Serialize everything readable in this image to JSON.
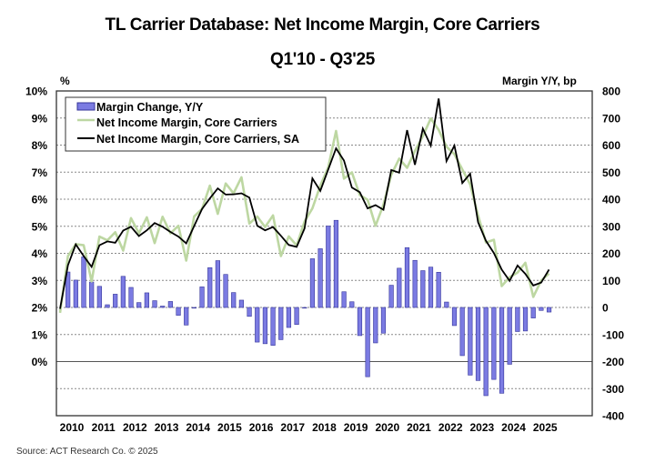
{
  "title": "TL Carrier Database: Net Income Margin, Core Carriers",
  "subtitle": "Q1'10 - Q3'25",
  "source": "Source: ACT Research Co. © 2025",
  "colors": {
    "bar_fill": "#7b7be2",
    "bar_stroke": "#35359a",
    "green": "#bdd7a2",
    "black": "#000000",
    "grid": "#888888"
  },
  "chart_data": {
    "type": "bar+line",
    "title": "TL Carrier Database: Net Income Margin, Core Carriers",
    "subtitle": "Q1'10 - Q3'25",
    "xlabel": "",
    "ylabel_left": "%",
    "ylabel_right": "Margin Y/Y, bp",
    "ylim_left": [
      -2,
      10
    ],
    "ylim_right": [
      -400,
      800
    ],
    "left_ticks": [
      "10%",
      "9%",
      "8%",
      "7%",
      "6%",
      "5%",
      "4%",
      "3%",
      "2%",
      "1%",
      "0%"
    ],
    "left_tick_values": [
      10,
      9,
      8,
      7,
      6,
      5,
      4,
      3,
      2,
      1,
      0
    ],
    "right_ticks": [
      "800",
      "700",
      "600",
      "500",
      "400",
      "300",
      "200",
      "100",
      "0",
      "-100",
      "-200",
      "-300",
      "-400"
    ],
    "right_tick_values": [
      800,
      700,
      600,
      500,
      400,
      300,
      200,
      100,
      0,
      -100,
      -200,
      -300,
      -400
    ],
    "x_labels": [
      "2010",
      "2011",
      "2012",
      "2013",
      "2014",
      "2015",
      "2016",
      "2017",
      "2018",
      "2019",
      "2020",
      "2021",
      "2022",
      "2023",
      "2024",
      "2025"
    ],
    "grid": true,
    "legend_position": "top-left",
    "quarters_start": "Q1'10",
    "quarters_end": "Q3'25",
    "series": [
      {
        "name": "Margin Change, Y/Y",
        "type": "bar",
        "axis": "right",
        "unit": "bp",
        "values": [
          0,
          131,
          101,
          187,
          94,
          78,
          10,
          49,
          115,
          74,
          18,
          54,
          25,
          5,
          22,
          -29,
          -65,
          -2,
          76,
          147,
          173,
          122,
          55,
          27,
          -33,
          -128,
          -134,
          -140,
          -119,
          -74,
          -63,
          -2,
          180,
          217,
          301,
          322,
          58,
          21,
          -104,
          -256,
          -131,
          -95,
          82,
          145,
          221,
          174,
          136,
          149,
          130,
          20,
          -67,
          -178,
          -250,
          -270,
          -326,
          -266,
          -317,
          -210,
          -89,
          -87,
          -39,
          -11,
          -17
        ]
      },
      {
        "name": "Net Income Margin, Core Carriers",
        "type": "line",
        "axis": "left",
        "unit": "%",
        "values": [
          1.8,
          3.9,
          4.34,
          4.3,
          2.96,
          4.62,
          4.48,
          4.78,
          4.1,
          5.3,
          4.74,
          5.33,
          4.38,
          5.35,
          4.74,
          5.02,
          3.73,
          5.36,
          5.64,
          6.5,
          5.46,
          6.58,
          6.22,
          6.81,
          5.1,
          5.36,
          4.97,
          5.4,
          3.9,
          4.63,
          4.29,
          5.18,
          5.66,
          6.5,
          7.18,
          8.52,
          6.76,
          6.99,
          6.15,
          5.98,
          5.02,
          5.8,
          6.9,
          7.5,
          7.16,
          7.78,
          8.33,
          8.98,
          8.56,
          7.94,
          7.66,
          7.1,
          6.55,
          5.4,
          4.4,
          4.5,
          2.79,
          3.12,
          3.29,
          3.65,
          2.39,
          3.0,
          3.25
        ]
      },
      {
        "name": "Net Income Margin, Core Carriers, SA",
        "type": "line",
        "axis": "left",
        "unit": "%",
        "values": [
          1.95,
          3.56,
          4.33,
          3.9,
          3.5,
          4.3,
          4.44,
          4.39,
          4.84,
          4.98,
          4.64,
          4.85,
          5.12,
          4.98,
          4.79,
          4.62,
          4.37,
          5.01,
          5.64,
          6.03,
          6.4,
          6.17,
          6.18,
          6.22,
          6.06,
          5.02,
          4.85,
          4.97,
          4.65,
          4.31,
          4.24,
          4.92,
          6.77,
          6.31,
          7.1,
          7.88,
          7.43,
          6.43,
          6.26,
          5.66,
          5.78,
          5.61,
          7.08,
          6.98,
          8.55,
          7.27,
          8.61,
          7.98,
          9.72,
          7.41,
          7.98,
          6.6,
          6.94,
          5.15,
          4.46,
          4.01,
          3.4,
          2.98,
          3.55,
          3.24,
          2.81,
          2.92,
          3.4
        ]
      }
    ]
  }
}
